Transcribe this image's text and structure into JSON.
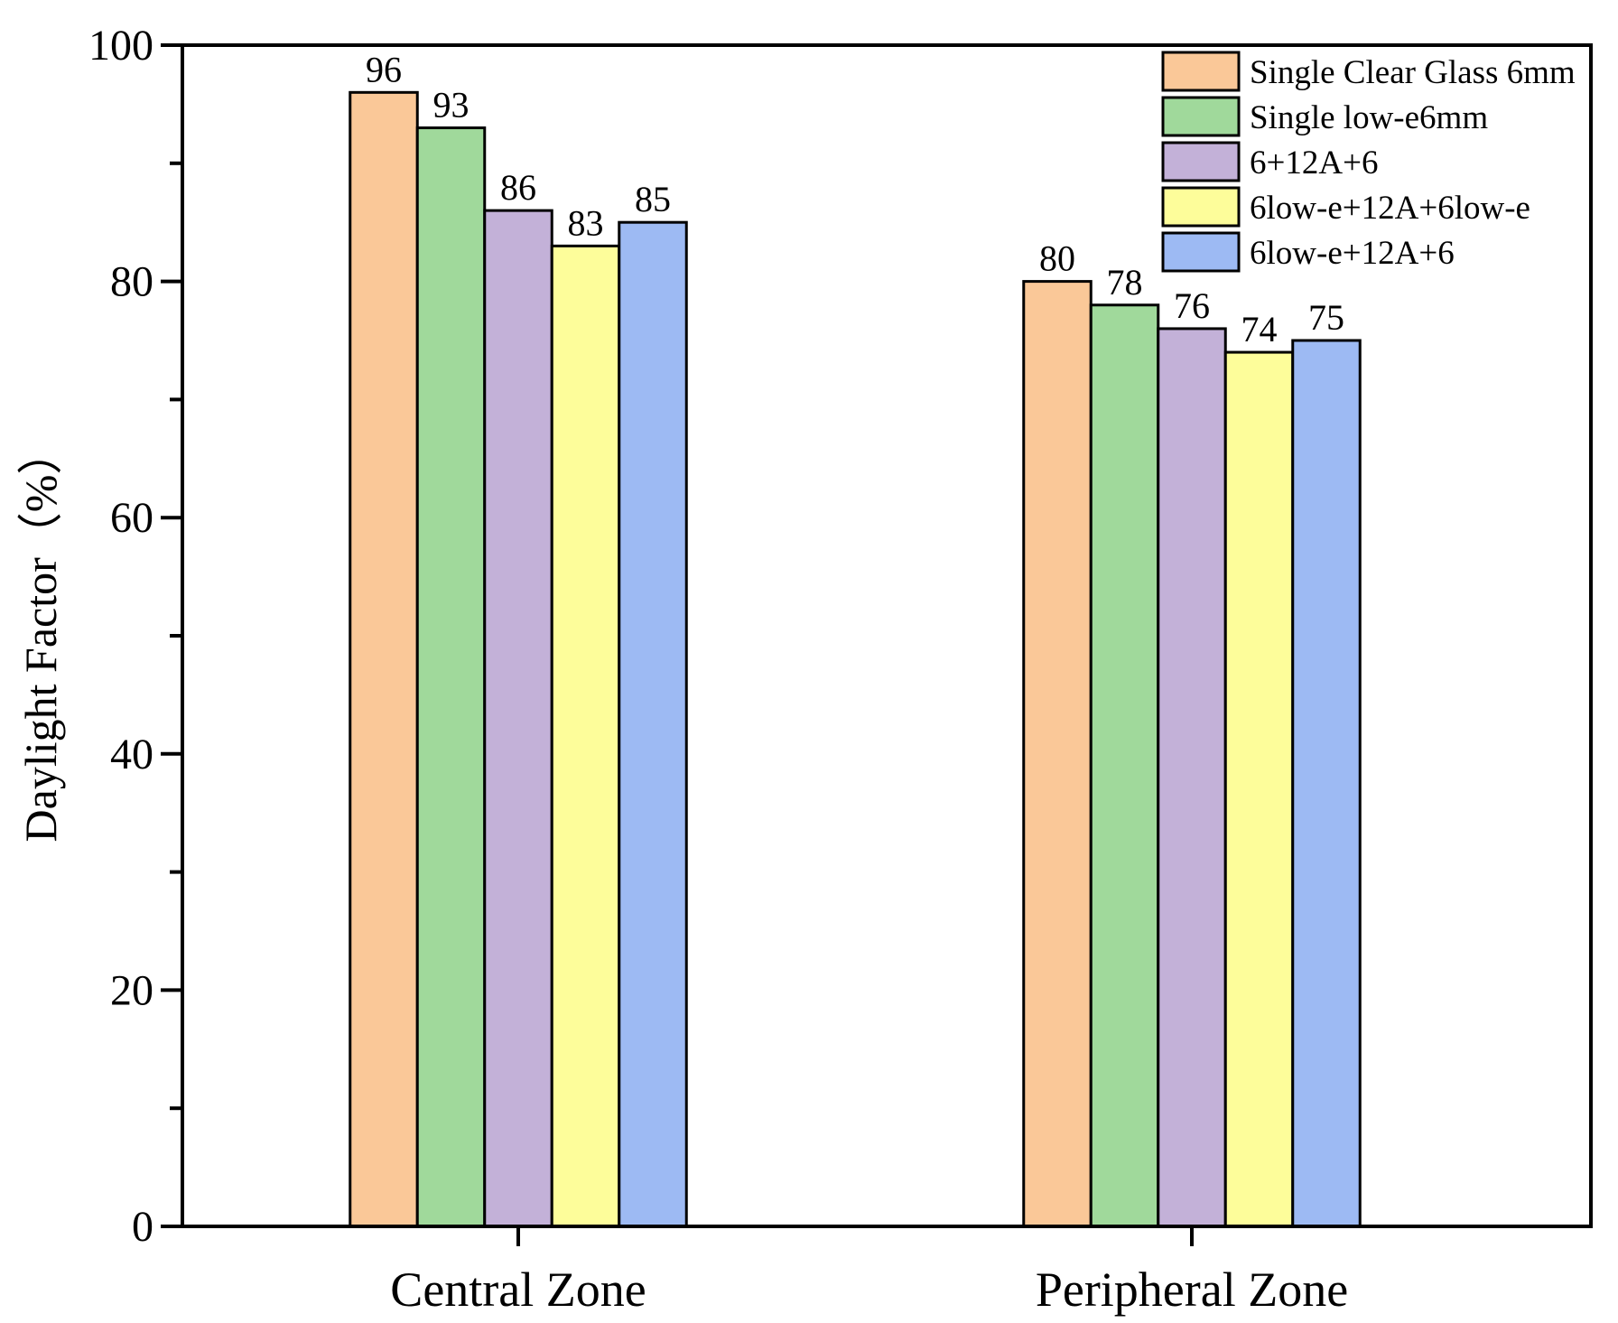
{
  "chart_data": {
    "type": "bar",
    "title": "",
    "xlabel": "",
    "ylabel": "Daylight Factor（%）",
    "ylim": [
      0,
      100
    ],
    "yticks": [
      0,
      20,
      40,
      60,
      80,
      100
    ],
    "grid": false,
    "legend_position": "top-right",
    "categories": [
      "Central Zone",
      "Peripheral Zone"
    ],
    "series": [
      {
        "name": "Single Clear Glass 6mm",
        "color": "#fac898",
        "values": [
          96,
          80
        ]
      },
      {
        "name": "Single low-e6mm",
        "color": "#a0d99b",
        "values": [
          93,
          78
        ]
      },
      {
        "name": "6+12A+6",
        "color": "#c3b1d8",
        "values": [
          86,
          76
        ]
      },
      {
        "name": "6low-e+12A+6low-e",
        "color": "#fdfd9a",
        "values": [
          83,
          74
        ]
      },
      {
        "name": "6low-e+12A+6",
        "color": "#9dbaf3",
        "values": [
          85,
          75
        ]
      }
    ]
  }
}
